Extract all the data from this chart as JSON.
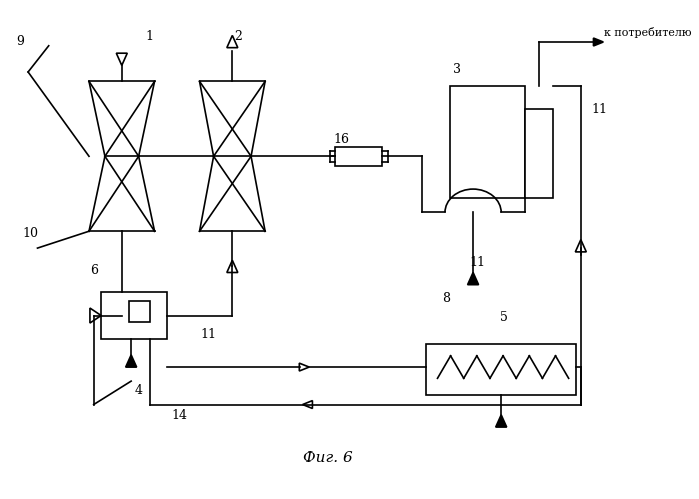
{
  "bg_color": "#ffffff",
  "line_color": "#000000",
  "fig_caption": "Фиг. 6",
  "to_consumer_text": "к потребителю"
}
